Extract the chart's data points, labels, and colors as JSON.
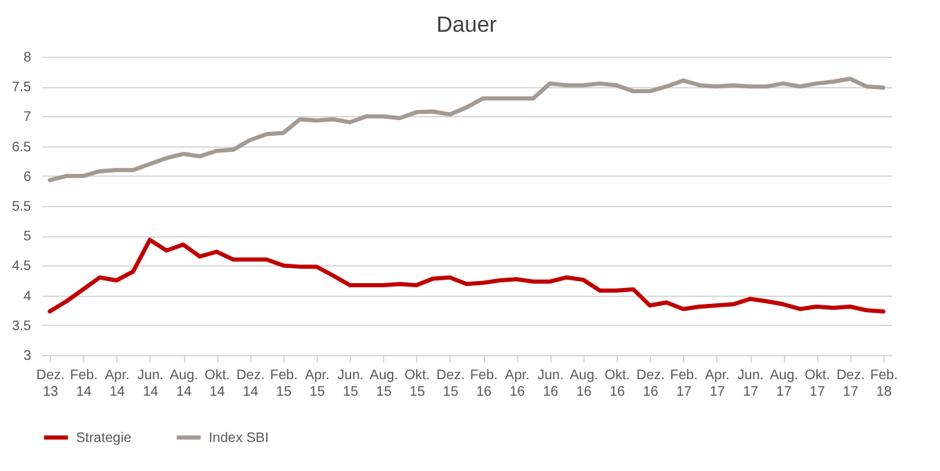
{
  "chart_data": {
    "type": "line",
    "title": "Dauer",
    "categories": [
      "Dez. 13",
      null,
      "Feb. 14",
      null,
      "Apr. 14",
      null,
      "Jun. 14",
      null,
      "Aug. 14",
      null,
      "Okt. 14",
      null,
      "Dez. 14",
      null,
      "Feb. 15",
      null,
      "Apr. 15",
      null,
      "Jun. 15",
      null,
      "Aug. 15",
      null,
      "Okt. 15",
      null,
      "Dez. 15",
      null,
      "Feb. 16",
      null,
      "Apr. 16",
      null,
      "Jun. 16",
      null,
      "Aug. 16",
      null,
      "Okt. 16",
      null,
      "Dez. 16",
      null,
      "Feb. 17",
      null,
      "Apr. 17",
      null,
      "Jun. 17",
      null,
      "Aug. 17",
      null,
      "Okt. 17",
      null,
      "Dez. 17",
      null,
      "Feb. 18"
    ],
    "series": [
      {
        "name": "Strategie",
        "color": "#c00000",
        "values": [
          3.73,
          3.9,
          4.1,
          4.3,
          4.25,
          4.4,
          4.93,
          4.75,
          4.85,
          4.65,
          4.73,
          4.6,
          4.6,
          4.6,
          4.5,
          4.48,
          4.48,
          4.33,
          4.17,
          4.17,
          4.17,
          4.19,
          4.17,
          4.28,
          4.3,
          4.19,
          4.21,
          4.25,
          4.27,
          4.23,
          4.23,
          4.3,
          4.26,
          4.08,
          4.08,
          4.1,
          3.83,
          3.88,
          3.77,
          3.81,
          3.83,
          3.85,
          3.94,
          3.9,
          3.85,
          3.77,
          3.81,
          3.79,
          3.81,
          3.75,
          3.73
        ]
      },
      {
        "name": "Index SBI",
        "color": "#a39a92",
        "values": [
          5.93,
          6.0,
          6.0,
          6.08,
          6.1,
          6.1,
          6.2,
          6.3,
          6.37,
          6.33,
          6.42,
          6.44,
          6.6,
          6.7,
          6.72,
          6.95,
          6.93,
          6.95,
          6.9,
          7.0,
          7.0,
          6.97,
          7.07,
          7.08,
          7.03,
          7.15,
          7.3,
          7.3,
          7.3,
          7.3,
          7.55,
          7.52,
          7.52,
          7.55,
          7.52,
          7.42,
          7.42,
          7.5,
          7.6,
          7.52,
          7.5,
          7.52,
          7.5,
          7.5,
          7.55,
          7.5,
          7.55,
          7.58,
          7.63,
          7.5,
          7.48
        ]
      }
    ],
    "ylim": [
      3,
      8
    ],
    "yticks": [
      3,
      3.5,
      4,
      4.5,
      5,
      5.5,
      6,
      6.5,
      7,
      7.5,
      8
    ],
    "grid": "y",
    "legend": "bottom",
    "marker": "none",
    "line_style": "solid"
  }
}
